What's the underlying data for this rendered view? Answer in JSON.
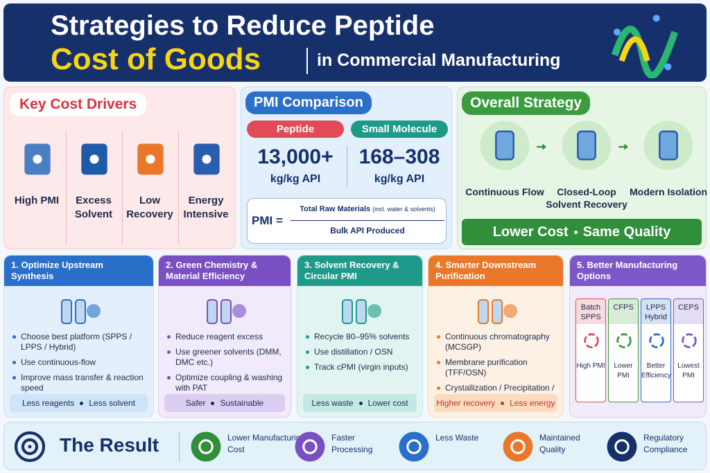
{
  "header": {
    "title_line1": "Strategies to Reduce Peptide",
    "title_line2": "Cost of Goods",
    "subtitle": "in Commercial Manufacturing"
  },
  "cost_drivers": {
    "title": "Key Cost Drivers",
    "items": [
      "High PMI",
      "Excess Solvent",
      "Low Recovery",
      "Energy Intensive"
    ]
  },
  "pmi": {
    "title": "PMI Comparison",
    "columns": [
      {
        "label": "Peptide",
        "value": "13,000+",
        "unit": "kg/kg API"
      },
      {
        "label": "Small Molecule",
        "value": "168–308",
        "unit": "kg/kg API"
      }
    ],
    "formula": {
      "lhs": "PMI =",
      "numerator": "Total Raw Materials",
      "numerator_note": "(incl. water & solvents)",
      "denominator": "Bulk API Produced"
    }
  },
  "strategy": {
    "title": "Overall Strategy",
    "steps": [
      "Continuous Flow",
      "Closed-Loop Solvent Recovery",
      "Modern Isolation"
    ],
    "banner": [
      "Lower Cost",
      "Same Quality"
    ]
  },
  "cards": [
    {
      "title": "1. Optimize Upstream Synthesis",
      "bullets": [
        "Choose best platform (SPPS / LPPS / Hybrid)",
        "Use continuous-flow",
        "Improve mass transfer & reaction speed"
      ],
      "footer": [
        "Less reagents",
        "Less solvent"
      ]
    },
    {
      "title": "2. Green Chemistry & Material Efficiency",
      "bullets": [
        "Reduce reagent excess",
        "Use greener solvents (DMM, DMC etc.)",
        "Optimize coupling & washing with PAT"
      ],
      "footer": [
        "Safer",
        "Sustainable"
      ]
    },
    {
      "title": "3. Solvent Recovery & Circular PMI",
      "bullets": [
        "Recycle 80–95% solvents",
        "Use distillation / OSN",
        "Track cPMI (virgin inputs)"
      ],
      "footer": [
        "Less waste",
        "Lower cost"
      ]
    },
    {
      "title": "4. Smarter Downstream Purification",
      "bullets": [
        "Continuous chromatography (MCSGP)",
        "Membrane purification (TFF/OSN)",
        "Crystallization / Precipitation / Spray drying"
      ],
      "footer": [
        "Higher recovery",
        "Less energy"
      ]
    },
    {
      "title": "5. Better Manufacturing Options",
      "options": [
        {
          "name": "Batch SPPS",
          "note": "High PMI"
        },
        {
          "name": "CFPS",
          "note": "Lower PMI"
        },
        {
          "name": "LPPS Hybrid",
          "note": "Better Efficiency"
        },
        {
          "name": "CEPS",
          "note": "Lowest PMI"
        }
      ]
    }
  ],
  "result": {
    "title": "The Result",
    "items": [
      "Lower Manufacturing Cost",
      "Faster Processing",
      "Less Waste",
      "Maintained Quality",
      "Regulatory Compliance"
    ]
  }
}
